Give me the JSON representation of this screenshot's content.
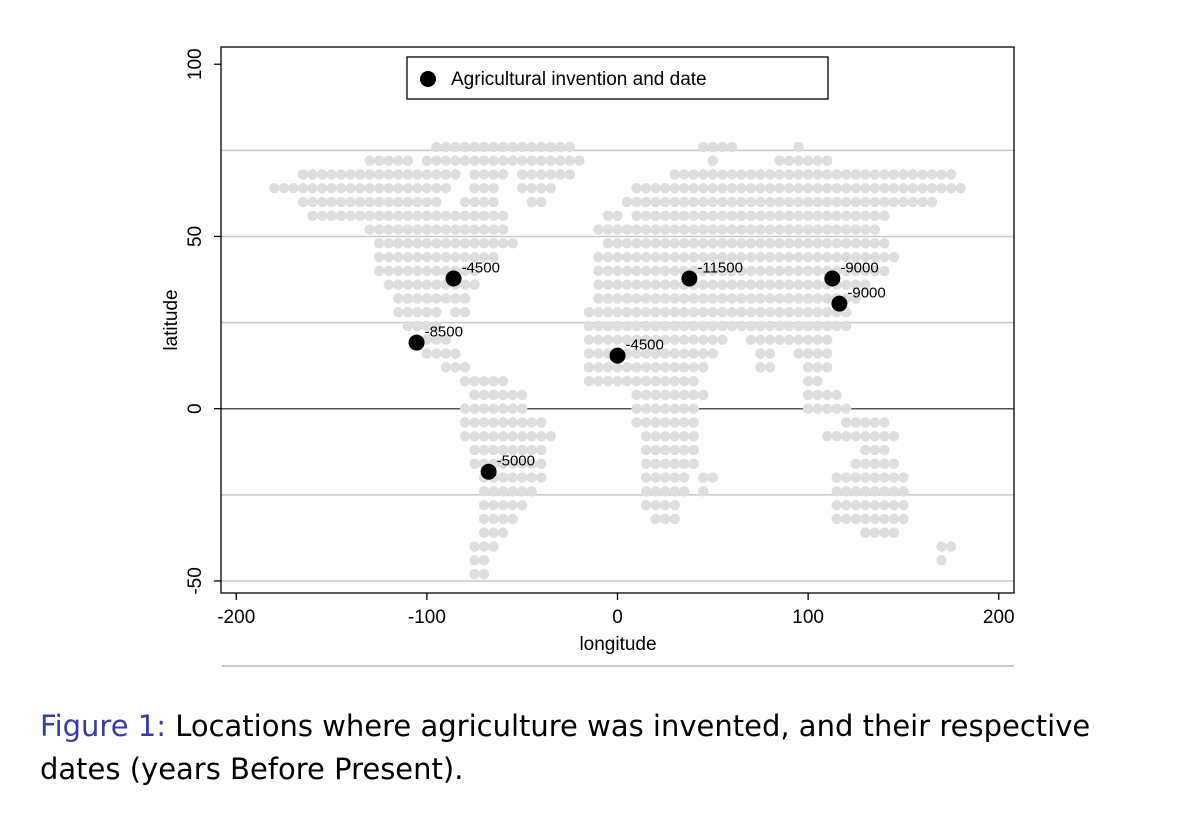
{
  "chart_data": {
    "type": "scatter",
    "xlabel": "longitude",
    "ylabel": "latitude",
    "xlim": [
      -208,
      208
    ],
    "ylim": [
      -53.5,
      105
    ],
    "xticks": [
      -200,
      -100,
      0,
      100,
      200
    ],
    "yticks": [
      -50,
      0,
      50,
      100
    ],
    "ygrid": [
      -50,
      -25,
      0,
      25,
      50,
      75
    ],
    "legend": "top",
    "land": {
      "color": "#dddddd",
      "rows": [
        {
          "lat": 76,
          "lons": [
            -95,
            -90,
            -85,
            -80,
            -75,
            -70,
            -65,
            -60,
            -55,
            -50,
            -45,
            -40,
            -35,
            -30,
            -25,
            45,
            50,
            55,
            60,
            95
          ]
        },
        {
          "lat": 72,
          "lons": [
            -130,
            -125,
            -120,
            -115,
            -110,
            -100,
            -95,
            -90,
            -85,
            -80,
            -75,
            -70,
            -65,
            -60,
            -55,
            -50,
            -45,
            -40,
            -35,
            -30,
            -25,
            -20,
            50,
            85,
            90,
            95,
            100,
            105,
            110
          ]
        },
        {
          "lat": 68,
          "lons": [
            -165,
            -160,
            -155,
            -150,
            -145,
            -140,
            -135,
            -130,
            -125,
            -120,
            -115,
            -110,
            -105,
            -100,
            -95,
            -90,
            -85,
            -75,
            -70,
            -65,
            -60,
            -50,
            -45,
            -40,
            -35,
            -30,
            -25,
            30,
            35,
            40,
            45,
            50,
            55,
            60,
            65,
            70,
            75,
            80,
            85,
            90,
            95,
            100,
            105,
            110,
            115,
            120,
            125,
            130,
            135,
            140,
            145,
            150,
            155,
            160,
            165,
            170,
            175
          ]
        },
        {
          "lat": 64,
          "lons": [
            -180,
            -175,
            -170,
            -165,
            -160,
            -155,
            -150,
            -145,
            -140,
            -135,
            -130,
            -125,
            -120,
            -115,
            -110,
            -105,
            -100,
            -95,
            -90,
            -75,
            -70,
            -65,
            -50,
            -45,
            -40,
            -35,
            10,
            15,
            20,
            25,
            30,
            35,
            40,
            45,
            50,
            55,
            60,
            65,
            70,
            75,
            80,
            85,
            90,
            95,
            100,
            105,
            110,
            115,
            120,
            125,
            130,
            135,
            140,
            145,
            150,
            155,
            160,
            165,
            170,
            175,
            180
          ]
        },
        {
          "lat": 60,
          "lons": [
            -165,
            -160,
            -155,
            -150,
            -145,
            -140,
            -135,
            -130,
            -125,
            -120,
            -115,
            -110,
            -105,
            -100,
            -95,
            -80,
            -75,
            -70,
            -65,
            -45,
            -40,
            5,
            10,
            15,
            20,
            25,
            30,
            35,
            40,
            45,
            50,
            55,
            60,
            65,
            70,
            75,
            80,
            85,
            90,
            95,
            100,
            105,
            110,
            115,
            120,
            125,
            130,
            135,
            140,
            145,
            150,
            155,
            160,
            165
          ]
        },
        {
          "lat": 56,
          "lons": [
            -160,
            -155,
            -150,
            -145,
            -140,
            -135,
            -130,
            -125,
            -120,
            -115,
            -110,
            -105,
            -100,
            -95,
            -90,
            -85,
            -80,
            -75,
            -70,
            -65,
            -60,
            -5,
            0,
            10,
            15,
            20,
            25,
            30,
            35,
            40,
            45,
            50,
            55,
            60,
            65,
            70,
            75,
            80,
            85,
            90,
            95,
            100,
            105,
            110,
            115,
            120,
            125,
            130,
            135,
            140
          ]
        },
        {
          "lat": 52,
          "lons": [
            -130,
            -125,
            -120,
            -115,
            -110,
            -105,
            -100,
            -95,
            -90,
            -85,
            -80,
            -75,
            -70,
            -65,
            -60,
            -10,
            -5,
            0,
            5,
            10,
            15,
            20,
            25,
            30,
            35,
            40,
            45,
            50,
            55,
            60,
            65,
            70,
            75,
            80,
            85,
            90,
            95,
            100,
            105,
            110,
            115,
            120,
            125,
            130,
            135
          ]
        },
        {
          "lat": 48,
          "lons": [
            -125,
            -120,
            -115,
            -110,
            -105,
            -100,
            -95,
            -90,
            -85,
            -80,
            -75,
            -70,
            -65,
            -60,
            -55,
            -5,
            0,
            5,
            10,
            15,
            20,
            25,
            30,
            35,
            40,
            45,
            50,
            55,
            60,
            65,
            70,
            75,
            80,
            85,
            90,
            95,
            100,
            105,
            110,
            115,
            120,
            125,
            130,
            135,
            140
          ]
        },
        {
          "lat": 44,
          "lons": [
            -125,
            -120,
            -115,
            -110,
            -105,
            -100,
            -95,
            -90,
            -85,
            -80,
            -75,
            -70,
            -65,
            -10,
            -5,
            0,
            5,
            10,
            15,
            20,
            25,
            30,
            35,
            40,
            45,
            50,
            55,
            60,
            65,
            70,
            75,
            80,
            85,
            90,
            95,
            100,
            105,
            110,
            115,
            120,
            125,
            130,
            135,
            140,
            145
          ]
        },
        {
          "lat": 40,
          "lons": [
            -125,
            -120,
            -115,
            -110,
            -105,
            -100,
            -95,
            -90,
            -85,
            -80,
            -75,
            -10,
            -5,
            0,
            5,
            10,
            15,
            20,
            25,
            30,
            35,
            40,
            45,
            50,
            55,
            60,
            65,
            70,
            75,
            80,
            85,
            90,
            95,
            100,
            105,
            110,
            115,
            120,
            125,
            130,
            135,
            140
          ]
        },
        {
          "lat": 36,
          "lons": [
            -120,
            -115,
            -110,
            -105,
            -100,
            -95,
            -90,
            -85,
            -80,
            -75,
            -10,
            -5,
            0,
            5,
            10,
            15,
            20,
            25,
            30,
            35,
            40,
            45,
            50,
            55,
            60,
            65,
            70,
            75,
            80,
            85,
            90,
            95,
            100,
            105,
            110,
            115,
            120,
            125,
            130
          ]
        },
        {
          "lat": 32,
          "lons": [
            -115,
            -110,
            -105,
            -100,
            -95,
            -90,
            -85,
            -80,
            -10,
            -5,
            0,
            5,
            10,
            15,
            20,
            25,
            30,
            35,
            40,
            45,
            50,
            55,
            60,
            65,
            70,
            75,
            80,
            85,
            90,
            95,
            100,
            105,
            110,
            115,
            120,
            125
          ]
        },
        {
          "lat": 28,
          "lons": [
            -115,
            -110,
            -105,
            -100,
            -95,
            -85,
            -80,
            -15,
            -10,
            -5,
            0,
            5,
            10,
            15,
            20,
            25,
            30,
            35,
            40,
            45,
            50,
            55,
            60,
            65,
            70,
            75,
            80,
            85,
            90,
            95,
            100,
            105,
            110,
            115,
            120
          ]
        },
        {
          "lat": 24,
          "lons": [
            -110,
            -105,
            -100,
            -95,
            -15,
            -10,
            -5,
            0,
            5,
            10,
            15,
            20,
            25,
            30,
            35,
            40,
            45,
            50,
            55,
            60,
            65,
            70,
            75,
            80,
            85,
            90,
            95,
            100,
            105,
            110,
            115,
            120
          ]
        },
        {
          "lat": 20,
          "lons": [
            -105,
            -100,
            -95,
            -90,
            -15,
            -10,
            -5,
            0,
            5,
            10,
            15,
            20,
            25,
            30,
            35,
            40,
            45,
            50,
            55,
            70,
            75,
            80,
            85,
            90,
            95,
            100,
            105,
            110
          ]
        },
        {
          "lat": 16,
          "lons": [
            -100,
            -95,
            -90,
            -85,
            -15,
            -10,
            -5,
            0,
            5,
            10,
            15,
            20,
            25,
            30,
            35,
            40,
            45,
            50,
            75,
            80,
            95,
            100,
            105,
            110
          ]
        },
        {
          "lat": 12,
          "lons": [
            -90,
            -85,
            -80,
            -15,
            -10,
            -5,
            0,
            5,
            10,
            15,
            20,
            25,
            30,
            35,
            40,
            45,
            75,
            80,
            100,
            105,
            110
          ]
        },
        {
          "lat": 8,
          "lons": [
            -80,
            -75,
            -70,
            -65,
            -60,
            -15,
            -10,
            -5,
            0,
            5,
            10,
            15,
            20,
            25,
            30,
            35,
            40,
            100,
            105
          ]
        },
        {
          "lat": 4,
          "lons": [
            -75,
            -70,
            -65,
            -60,
            -55,
            -50,
            10,
            15,
            20,
            25,
            30,
            35,
            40,
            45,
            100,
            105,
            110,
            115
          ]
        },
        {
          "lat": 0,
          "lons": [
            -80,
            -75,
            -70,
            -65,
            -60,
            -55,
            -50,
            10,
            15,
            20,
            25,
            30,
            35,
            40,
            100,
            105,
            110,
            115,
            120
          ]
        },
        {
          "lat": -4,
          "lons": [
            -80,
            -75,
            -70,
            -65,
            -60,
            -55,
            -50,
            -45,
            -40,
            10,
            15,
            20,
            25,
            30,
            35,
            40,
            120,
            125,
            130,
            135,
            140
          ]
        },
        {
          "lat": -8,
          "lons": [
            -80,
            -75,
            -70,
            -65,
            -60,
            -55,
            -50,
            -45,
            -40,
            -35,
            15,
            20,
            25,
            30,
            35,
            40,
            110,
            115,
            120,
            125,
            130,
            135,
            140,
            145
          ]
        },
        {
          "lat": -12,
          "lons": [
            -75,
            -70,
            -65,
            -60,
            -55,
            -50,
            -45,
            -40,
            15,
            20,
            25,
            30,
            35,
            40,
            130,
            135,
            140
          ]
        },
        {
          "lat": -16,
          "lons": [
            -75,
            -70,
            -65,
            -60,
            -55,
            -50,
            -45,
            -40,
            15,
            20,
            25,
            30,
            35,
            40,
            125,
            130,
            135,
            140,
            145
          ]
        },
        {
          "lat": -20,
          "lons": [
            -70,
            -65,
            -60,
            -55,
            -50,
            -45,
            -40,
            15,
            20,
            25,
            30,
            35,
            45,
            50,
            115,
            120,
            125,
            130,
            135,
            140,
            145,
            150
          ]
        },
        {
          "lat": -24,
          "lons": [
            -70,
            -65,
            -60,
            -55,
            -50,
            -45,
            15,
            20,
            25,
            30,
            35,
            45,
            115,
            120,
            125,
            130,
            135,
            140,
            145,
            150
          ]
        },
        {
          "lat": -28,
          "lons": [
            -70,
            -65,
            -60,
            -55,
            -50,
            15,
            20,
            25,
            30,
            115,
            120,
            125,
            130,
            135,
            140,
            145,
            150
          ]
        },
        {
          "lat": -32,
          "lons": [
            -70,
            -65,
            -60,
            -55,
            20,
            25,
            30,
            115,
            120,
            125,
            130,
            135,
            140,
            145,
            150
          ]
        },
        {
          "lat": -36,
          "lons": [
            -70,
            -65,
            -60,
            130,
            135,
            140,
            145
          ]
        },
        {
          "lat": -40,
          "lons": [
            -75,
            -70,
            -65,
            170,
            175
          ]
        },
        {
          "lat": -44,
          "lons": [
            -75,
            -70,
            170
          ]
        },
        {
          "lat": -48,
          "lons": [
            -75,
            -70
          ]
        }
      ]
    },
    "series": [
      {
        "name": "Agricultural invention and date",
        "color": "#000000",
        "x": [
          -86,
          -105.4,
          0,
          37.7,
          112.7,
          116.4,
          -67.6
        ],
        "y": [
          37.8,
          19.2,
          15.4,
          37.8,
          37.8,
          30.5,
          -18.3
        ],
        "dates": [
          -4500,
          -8500,
          -4500,
          -11500,
          -9000,
          -9000,
          -5000
        ]
      }
    ]
  },
  "caption": {
    "label": "Figure 1:",
    "text": "Locations where agriculture was invented, and their respective dates (years Before Present)."
  }
}
